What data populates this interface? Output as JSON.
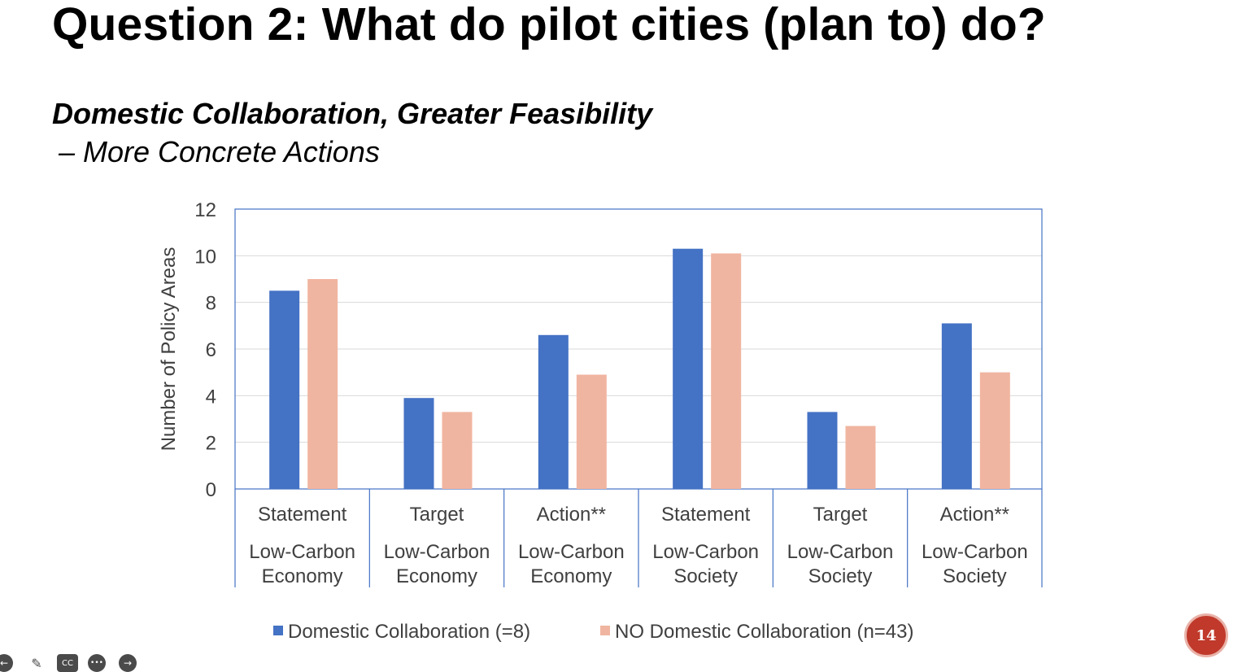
{
  "slide": {
    "title": "Question 2: What do pilot cities (plan to) do?",
    "subtitle_line1": "Domestic Collaboration, Greater Feasibility",
    "subtitle_line2": "– More Concrete Actions",
    "page_number": "14"
  },
  "chart_data": {
    "type": "bar",
    "ylabel": "Number of Policy Areas",
    "ylim": [
      0,
      12
    ],
    "yticks": [
      0,
      2,
      4,
      6,
      8,
      10,
      12
    ],
    "grid": true,
    "legend_position": "bottom",
    "categories": [
      {
        "top": "Statement",
        "group": "Low-Carbon Economy",
        "group_lines": [
          "Low-Carbon",
          "Economy"
        ]
      },
      {
        "top": "Target",
        "group": "Low-Carbon Economy",
        "group_lines": [
          "Low-Carbon",
          "Economy"
        ]
      },
      {
        "top": "Action**",
        "group": "Low-Carbon Economy",
        "group_lines": [
          "Low-Carbon",
          "Economy"
        ]
      },
      {
        "top": "Statement",
        "group": "Low-Carbon Society",
        "group_lines": [
          "Low-Carbon",
          "Society"
        ]
      },
      {
        "top": "Target",
        "group": "Low-Carbon Society",
        "group_lines": [
          "Low-Carbon",
          "Society"
        ]
      },
      {
        "top": "Action**",
        "group": "Low-Carbon Society",
        "group_lines": [
          "Low-Carbon",
          "Society"
        ]
      }
    ],
    "series": [
      {
        "name": "Domestic Collaboration (=8)",
        "color": "#4472c4",
        "values": [
          8.5,
          3.9,
          6.6,
          10.3,
          3.3,
          7.1
        ]
      },
      {
        "name": "NO Domestic Collaboration (n=43)",
        "color": "#f0b5a0",
        "values": [
          9.0,
          3.3,
          4.9,
          10.1,
          2.7,
          5.0
        ]
      }
    ]
  },
  "toolbar": {
    "icons": [
      "back-icon",
      "pen-icon",
      "captions-icon",
      "more-icon",
      "forward-icon"
    ],
    "captions_label": "CC",
    "more_label": "•••"
  }
}
